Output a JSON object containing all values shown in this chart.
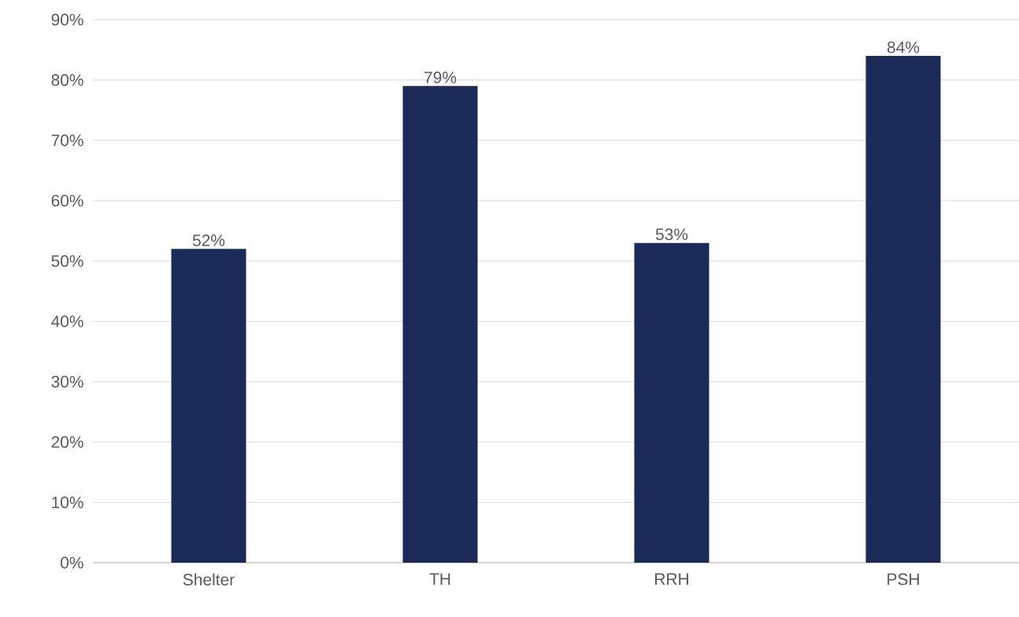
{
  "chart_data": {
    "type": "bar",
    "categories": [
      "Shelter",
      "TH",
      "RRH",
      "PSH"
    ],
    "values": [
      52,
      79,
      53,
      84
    ],
    "value_labels": [
      "52%",
      "79%",
      "53%",
      "84%"
    ],
    "color": "#1c2a5a",
    "ylim": [
      0,
      90
    ],
    "yticks": [
      {
        "value": 0,
        "label": "0%"
      },
      {
        "value": 10,
        "label": "10%"
      },
      {
        "value": 20,
        "label": "20%"
      },
      {
        "value": 30,
        "label": "30%"
      },
      {
        "value": 40,
        "label": "40%"
      },
      {
        "value": 50,
        "label": "50%"
      },
      {
        "value": 60,
        "label": "60%"
      },
      {
        "value": 70,
        "label": "70%"
      },
      {
        "value": 80,
        "label": "80%"
      },
      {
        "value": 90,
        "label": "90%"
      }
    ],
    "grid": "y"
  }
}
